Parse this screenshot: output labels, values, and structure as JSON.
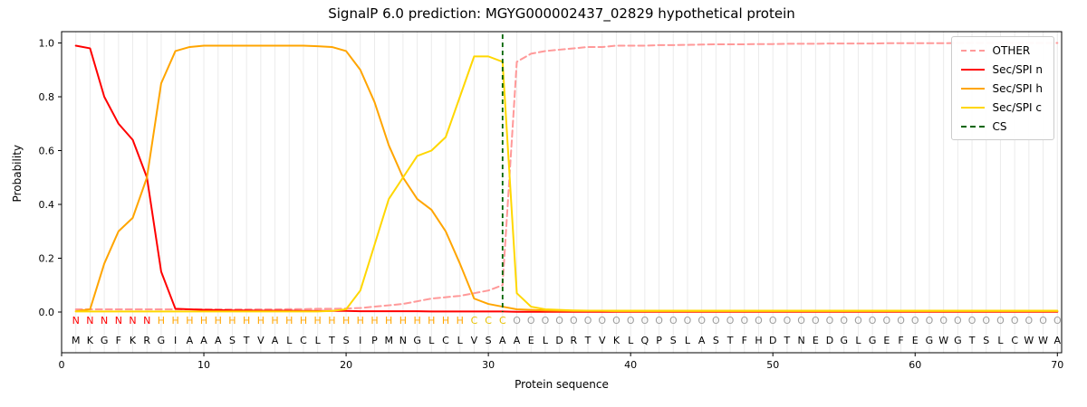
{
  "title": "SignalP 6.0 prediction: MGYG000002437_02829 hypothetical protein",
  "axes": {
    "xlabel": "Protein sequence",
    "ylabel": "Probability",
    "xticks": [
      0,
      10,
      20,
      30,
      40,
      50,
      60,
      70
    ],
    "yticks": [
      "0.0",
      "0.2",
      "0.4",
      "0.6",
      "0.8",
      "1.0"
    ],
    "xlim": [
      0,
      70.3
    ],
    "ylim": [
      -0.15,
      1.04
    ],
    "grid": "vertical-per-residue"
  },
  "legend": {
    "position": "upper-right",
    "items": [
      {
        "label": "OTHER",
        "color": "#ff9999",
        "dash": true
      },
      {
        "label": "Sec/SPI n",
        "color": "#ff0000",
        "dash": false
      },
      {
        "label": "Sec/SPI h",
        "color": "#ffa500",
        "dash": false
      },
      {
        "label": "Sec/SPI c",
        "color": "#ffd700",
        "dash": false
      },
      {
        "label": "CS",
        "color": "#006400",
        "dash": true
      }
    ]
  },
  "chart_data": {
    "type": "line",
    "x_start": 1,
    "x_step": 1,
    "cs_position": 31,
    "sequence": "MKGFKRGIAAASTVALCLTSIPMNGLCLVSAAELDRTVKLQPSLASTFHDTNEDGLGEFEGWGTSLCWWA",
    "region_labels": "NNNNNNHHHHHHHHHHHHHHHHHHHHHHCCCOOOOOOOOOOOOOOOOOOOOOOOOOOOOOOOOOOOOOOO",
    "region_colors": {
      "N": "#ff0000",
      "H": "#ffa500",
      "C": "#e8c000",
      "O": "#9e9e9e"
    },
    "series": [
      {
        "name": "OTHER",
        "color": "#ff9999",
        "dash": true,
        "values": [
          0.01,
          0.01,
          0.01,
          0.01,
          0.01,
          0.01,
          0.01,
          0.01,
          0.01,
          0.01,
          0.01,
          0.01,
          0.01,
          0.01,
          0.01,
          0.011,
          0.011,
          0.012,
          0.012,
          0.013,
          0.015,
          0.02,
          0.025,
          0.03,
          0.04,
          0.05,
          0.055,
          0.06,
          0.07,
          0.08,
          0.1,
          0.93,
          0.96,
          0.97,
          0.975,
          0.98,
          0.985,
          0.985,
          0.99,
          0.99,
          0.99,
          0.992,
          0.992,
          0.993,
          0.994,
          0.995,
          0.995,
          0.995,
          0.996,
          0.996,
          0.997,
          0.997,
          0.997,
          0.998,
          0.998,
          0.998,
          0.998,
          0.999,
          0.999,
          0.999,
          0.999,
          0.999,
          1.0,
          1.0,
          1.0,
          1.0,
          1.0,
          1.0,
          1.0,
          1.0
        ]
      },
      {
        "name": "Sec/SPI n",
        "color": "#ff0000",
        "dash": false,
        "values": [
          0.99,
          0.98,
          0.8,
          0.7,
          0.64,
          0.5,
          0.15,
          0.012,
          0.01,
          0.008,
          0.007,
          0.006,
          0.006,
          0.005,
          0.005,
          0.005,
          0.004,
          0.004,
          0.004,
          0.004,
          0.003,
          0.003,
          0.003,
          0.003,
          0.003,
          0.002,
          0.002,
          0.002,
          0.002,
          0.002,
          0.002,
          0.001,
          0.001,
          0.001,
          0.001,
          0.001,
          0.001,
          0.001,
          0.001,
          0.001,
          0.001,
          0.001,
          0.001,
          0.001,
          0.001,
          0.001,
          0.001,
          0.001,
          0.001,
          0.001,
          0.001,
          0.001,
          0.001,
          0.001,
          0.001,
          0.001,
          0.001,
          0.001,
          0.001,
          0.001,
          0.001,
          0.001,
          0.001,
          0.001,
          0.001,
          0.001,
          0.001,
          0.001,
          0.001,
          0.001
        ]
      },
      {
        "name": "Sec/SPI h",
        "color": "#ffa500",
        "dash": false,
        "values": [
          0.003,
          0.01,
          0.18,
          0.3,
          0.35,
          0.5,
          0.85,
          0.97,
          0.985,
          0.99,
          0.99,
          0.99,
          0.99,
          0.99,
          0.99,
          0.99,
          0.99,
          0.988,
          0.985,
          0.97,
          0.9,
          0.78,
          0.62,
          0.5,
          0.42,
          0.38,
          0.3,
          0.18,
          0.05,
          0.03,
          0.02,
          0.01,
          0.008,
          0.006,
          0.005,
          0.004,
          0.004,
          0.004,
          0.003,
          0.003,
          0.003,
          0.003,
          0.003,
          0.003,
          0.003,
          0.003,
          0.003,
          0.003,
          0.003,
          0.003,
          0.003,
          0.003,
          0.003,
          0.003,
          0.003,
          0.003,
          0.003,
          0.003,
          0.003,
          0.003,
          0.003,
          0.003,
          0.003,
          0.003,
          0.003,
          0.003,
          0.003,
          0.003,
          0.003,
          0.003
        ]
      },
      {
        "name": "Sec/SPI c",
        "color": "#ffd700",
        "dash": false,
        "values": [
          0.002,
          0.002,
          0.002,
          0.002,
          0.002,
          0.002,
          0.002,
          0.002,
          0.002,
          0.002,
          0.002,
          0.002,
          0.002,
          0.002,
          0.002,
          0.002,
          0.002,
          0.002,
          0.004,
          0.01,
          0.08,
          0.25,
          0.42,
          0.5,
          0.58,
          0.6,
          0.65,
          0.8,
          0.95,
          0.95,
          0.93,
          0.07,
          0.02,
          0.01,
          0.008,
          0.006,
          0.005,
          0.005,
          0.005,
          0.005,
          0.005,
          0.005,
          0.005,
          0.005,
          0.005,
          0.005,
          0.005,
          0.005,
          0.005,
          0.005,
          0.005,
          0.005,
          0.005,
          0.005,
          0.005,
          0.005,
          0.005,
          0.005,
          0.005,
          0.005,
          0.005,
          0.005,
          0.005,
          0.005,
          0.005,
          0.005,
          0.005,
          0.005,
          0.005,
          0.005
        ]
      }
    ]
  }
}
